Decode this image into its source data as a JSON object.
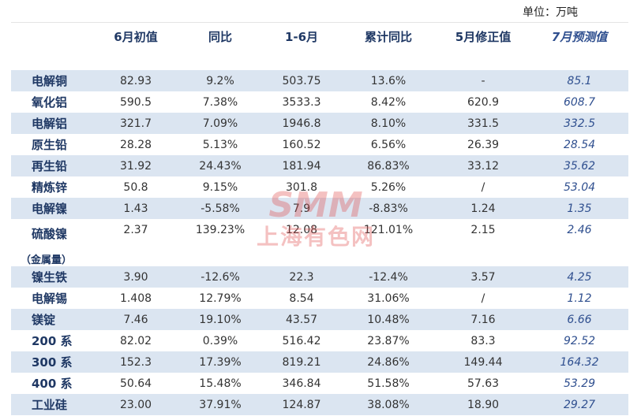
{
  "unit": "单位：万吨",
  "table": {
    "header": [
      "6月初值",
      "同比",
      "1-6月",
      "累计同比",
      "5月修正值",
      "7月预测值"
    ],
    "rows": [
      {
        "label": "电解铜",
        "cells": [
          "82.93",
          "9.2%",
          "503.75",
          "13.6%",
          "-",
          "85.1"
        ]
      },
      {
        "label": "氧化铝",
        "cells": [
          "590.5",
          "7.38%",
          "3533.3",
          "8.42%",
          "620.9",
          "608.7"
        ]
      },
      {
        "label": "电解铝",
        "cells": [
          "321.7",
          "7.09%",
          "1946.8",
          "8.10%",
          "331.5",
          "332.5"
        ]
      },
      {
        "label": "原生铅",
        "cells": [
          "28.28",
          "5.13%",
          "160.52",
          "6.56%",
          "26.39",
          "28.54"
        ]
      },
      {
        "label": "再生铅",
        "cells": [
          "31.92",
          "24.43%",
          "181.94",
          "86.83%",
          "33.12",
          "35.62"
        ]
      },
      {
        "label": "精炼锌",
        "cells": [
          "50.8",
          "9.15%",
          "301.8",
          "5.26%",
          "/",
          "53.04"
        ]
      },
      {
        "label": "电解镍",
        "cells": [
          "1.43",
          "-5.58%",
          "7.9",
          "-8.83%",
          "1.24",
          "1.35"
        ]
      },
      {
        "label": "硫酸镍",
        "note": "（金属量）",
        "cells": [
          "2.37",
          "139.23%",
          "12.08",
          "121.01%",
          "2.15",
          "2.46"
        ]
      },
      {
        "label": "镍生铁",
        "cells": [
          "3.90",
          "-12.6%",
          "22.3",
          "-12.4%",
          "3.57",
          "4.25"
        ]
      },
      {
        "label": "电解锡",
        "cells": [
          "1.408",
          "12.79%",
          "8.54",
          "31.06%",
          "/",
          "1.12"
        ]
      },
      {
        "label": "镁锭",
        "cells": [
          "7.46",
          "19.10%",
          "43.57",
          "10.48%",
          "7.16",
          "6.66"
        ]
      },
      {
        "label": "200 系",
        "cells": [
          "82.02",
          "0.39%",
          "516.42",
          "23.87%",
          "83.3",
          "92.52"
        ]
      },
      {
        "label": "300 系",
        "cells": [
          "152.3",
          "17.39%",
          "819.21",
          "24.86%",
          "149.44",
          "164.32"
        ]
      },
      {
        "label": "400 系",
        "cells": [
          "50.64",
          "15.48%",
          "346.84",
          "51.58%",
          "57.63",
          "53.29"
        ]
      },
      {
        "label": "工业硅",
        "cells": [
          "23.00",
          "37.91%",
          "124.87",
          "38.08%",
          "18.90",
          "29.27"
        ]
      }
    ]
  },
  "watermark": {
    "logo": "SMM",
    "text": "上海有色网"
  }
}
